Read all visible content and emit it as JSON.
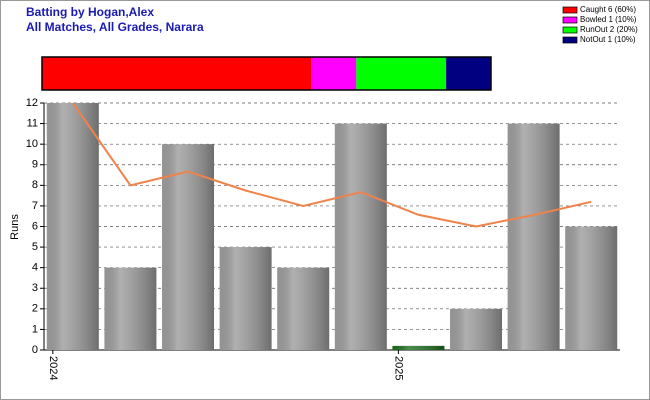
{
  "chart_data": {
    "type": "bar",
    "title": "Batting by Hogan,Alex",
    "subtitle": "All Matches, All Grades, Narara",
    "y_label": "Runs",
    "categories": [
      "2024",
      null,
      null,
      null,
      null,
      null,
      "2025",
      null,
      null,
      null
    ],
    "values": [
      12,
      4,
      10,
      5,
      4,
      11,
      0.2,
      2,
      11,
      6
    ],
    "colors": [
      "#9c9c9c",
      "#9c9c9c",
      "#9c9c9c",
      "#9c9c9c",
      "#9c9c9c",
      "#9c9c9c",
      "#1e6e1e",
      "#9c9c9c",
      "#9c9c9c",
      "#9c9c9c"
    ],
    "line": {
      "color": "#f0824a",
      "values": [
        12,
        8,
        8.67,
        7.75,
        7,
        7.67,
        6.57,
        6,
        6.56,
        7.2
      ]
    },
    "ylim": [
      0,
      12
    ],
    "yticks": [
      0,
      1,
      2,
      3,
      4,
      5,
      6,
      7,
      8,
      9,
      10,
      11,
      12
    ],
    "grid": true,
    "dismissals": [
      {
        "name": "Caught 6 (60%)",
        "value": 60,
        "color": "#ff0000"
      },
      {
        "name": "Bowled 1 (10%)",
        "value": 10,
        "color": "#ff00ff"
      },
      {
        "name": "RunOut 2 (20%)",
        "value": 20,
        "color": "#00ff00"
      },
      {
        "name": "NotOut 1 (10%)",
        "value": 10,
        "color": "#000080"
      }
    ]
  }
}
